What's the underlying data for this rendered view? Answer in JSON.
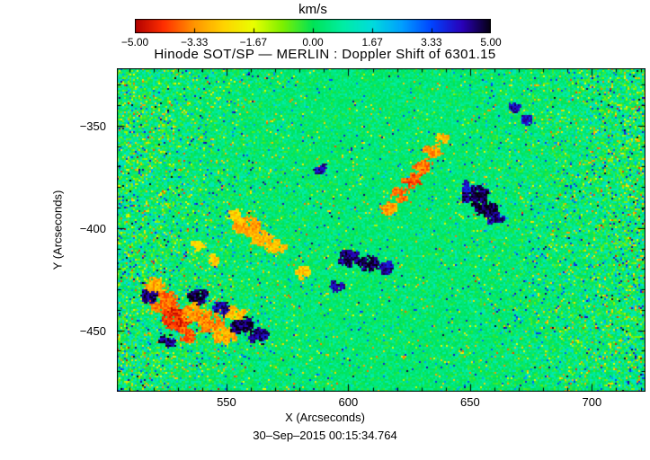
{
  "figure": {
    "title": "Hinode SOT/SP — MERLIN : Doppler Shift of 6301.15",
    "timestamp": "30–Sep–2015 00:15:34.764",
    "background_color": "#ffffff"
  },
  "colorbar": {
    "label": "km/s",
    "tick_labels": [
      "−5.00",
      "−3.33",
      "−1.67",
      "0.00",
      "1.67",
      "3.33",
      "5.00"
    ]
  },
  "axes": {
    "xlabel": "X (Arcseconds)",
    "ylabel": "Y (Arcseconds)",
    "x_tick_labels": [
      "550",
      "600",
      "650",
      "700"
    ],
    "y_tick_labels": [
      "−350",
      "−400",
      "−450"
    ]
  },
  "chart_data": {
    "type": "heatmap",
    "title": "Hinode SOT/SP — MERLIN : Doppler Shift of 6301.15",
    "xlabel": "X (Arcseconds)",
    "ylabel": "Y (Arcseconds)",
    "x_range": [
      505,
      722
    ],
    "y_range": [
      -480,
      -322
    ],
    "x_ticks": [
      550,
      600,
      650,
      700
    ],
    "y_ticks": [
      -350,
      -400,
      -450
    ],
    "minor_tick_step": 10,
    "colorbar": {
      "label": "km/s",
      "range": [
        -5,
        5
      ],
      "ticks": [
        -5.0,
        -3.33,
        -1.67,
        0.0,
        1.67,
        3.33,
        5.0
      ]
    },
    "palette_stops": [
      [
        -5.0,
        "#b00000"
      ],
      [
        -4.2,
        "#ff2e00"
      ],
      [
        -3.33,
        "#ff9500"
      ],
      [
        -2.5,
        "#ffd300"
      ],
      [
        -1.67,
        "#eaff00"
      ],
      [
        -0.85,
        "#7df000"
      ],
      [
        0.0,
        "#00e356"
      ],
      [
        0.85,
        "#00eda4"
      ],
      [
        1.67,
        "#00dcdc"
      ],
      [
        2.5,
        "#009fff"
      ],
      [
        3.33,
        "#0044ff"
      ],
      [
        4.2,
        "#2a00b8"
      ],
      [
        5.0,
        "#05000f"
      ]
    ],
    "texture": {
      "mean": 0.3,
      "noise_amplitude": 1.1,
      "speckle_probability": 0.045,
      "speckle_strength": 3.0,
      "edge_boost": 2.2,
      "seed": 1234
    },
    "features": [
      {
        "x": 524,
        "y": -436,
        "r": 5.0,
        "v": -3.6
      },
      {
        "x": 529,
        "y": -444,
        "r": 4.5,
        "v": -4.3
      },
      {
        "x": 536,
        "y": -441,
        "r": 3.5,
        "v": -3.2
      },
      {
        "x": 543,
        "y": -446,
        "r": 4.0,
        "v": -3.4
      },
      {
        "x": 549,
        "y": -452,
        "r": 3.5,
        "v": -3.0
      },
      {
        "x": 520,
        "y": -428,
        "r": 3.0,
        "v": -3.0
      },
      {
        "x": 533,
        "y": -452,
        "r": 3.0,
        "v": -3.8
      },
      {
        "x": 553,
        "y": -441,
        "r": 3.0,
        "v": -2.8
      },
      {
        "x": 518,
        "y": -433,
        "r": 2.5,
        "v": 4.6
      },
      {
        "x": 538,
        "y": -433,
        "r": 3.0,
        "v": 4.8
      },
      {
        "x": 547,
        "y": -439,
        "r": 2.5,
        "v": 4.3
      },
      {
        "x": 556,
        "y": -447,
        "r": 3.5,
        "v": 4.7
      },
      {
        "x": 563,
        "y": -452,
        "r": 3.0,
        "v": 4.4
      },
      {
        "x": 526,
        "y": -455,
        "r": 2.5,
        "v": 4.5
      },
      {
        "x": 558,
        "y": -399,
        "r": 4.0,
        "v": -3.1
      },
      {
        "x": 564,
        "y": -404,
        "r": 3.5,
        "v": -2.9
      },
      {
        "x": 570,
        "y": -409,
        "r": 3.0,
        "v": -2.7
      },
      {
        "x": 553,
        "y": -394,
        "r": 2.5,
        "v": -2.6
      },
      {
        "x": 581,
        "y": -421,
        "r": 2.5,
        "v": -2.6
      },
      {
        "x": 545,
        "y": -415,
        "r": 2.0,
        "v": -2.5
      },
      {
        "x": 538,
        "y": -408,
        "r": 2.0,
        "v": -2.4
      },
      {
        "x": 600,
        "y": -414,
        "r": 3.5,
        "v": 4.5
      },
      {
        "x": 608,
        "y": -417,
        "r": 3.0,
        "v": 4.6
      },
      {
        "x": 615,
        "y": -419,
        "r": 2.5,
        "v": 4.2
      },
      {
        "x": 616,
        "y": -390,
        "r": 2.5,
        "v": -3.2
      },
      {
        "x": 621,
        "y": -383,
        "r": 2.8,
        "v": -3.6
      },
      {
        "x": 626,
        "y": -376,
        "r": 3.0,
        "v": -3.9
      },
      {
        "x": 630,
        "y": -369,
        "r": 2.8,
        "v": -3.5
      },
      {
        "x": 634,
        "y": -362,
        "r": 2.5,
        "v": -3.2
      },
      {
        "x": 638,
        "y": -356,
        "r": 2.0,
        "v": -2.9
      },
      {
        "x": 652,
        "y": -384,
        "r": 4.0,
        "v": 4.6
      },
      {
        "x": 657,
        "y": -390,
        "r": 3.5,
        "v": 4.8
      },
      {
        "x": 660,
        "y": -395,
        "r": 2.5,
        "v": 4.3
      },
      {
        "x": 648,
        "y": -379,
        "r": 2.0,
        "v": 4.0
      },
      {
        "x": 668,
        "y": -341,
        "r": 2.0,
        "v": 4.2
      },
      {
        "x": 673,
        "y": -347,
        "r": 1.8,
        "v": 4.0
      },
      {
        "x": 588,
        "y": -371,
        "r": 1.8,
        "v": 4.1
      },
      {
        "x": 595,
        "y": -428,
        "r": 2.0,
        "v": 4.3
      }
    ]
  }
}
